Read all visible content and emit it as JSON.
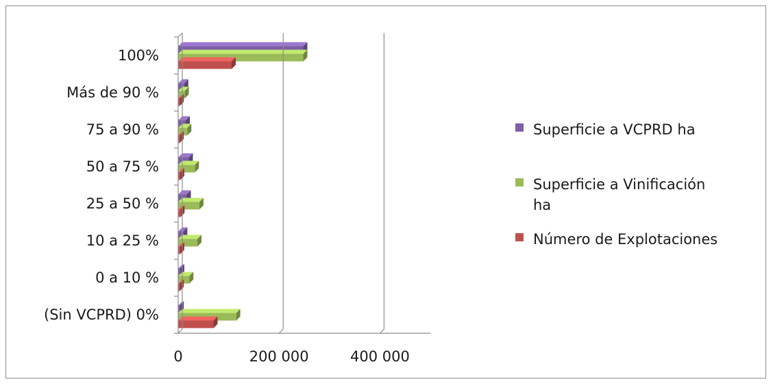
{
  "chart_data": {
    "type": "bar",
    "orientation": "horizontal",
    "categories": [
      "(Sin VCPRD) 0%",
      "0 a 10 %",
      "10 a 25 %",
      "25 a 50 %",
      "50 a 75 %",
      "75 a 90 %",
      "Más de 90 %",
      "100%"
    ],
    "series": [
      {
        "name": "Superficie a VCPRD ha",
        "color": "#7d5fa6",
        "values": [
          3000,
          4000,
          10000,
          17000,
          21000,
          15000,
          12000,
          248000
        ]
      },
      {
        "name": "Superficie a Vinificación ha",
        "color": "#9bbb59",
        "values": [
          115000,
          22000,
          38000,
          42000,
          33000,
          18000,
          13000,
          248000
        ]
      },
      {
        "name": "Número de Explotaciones",
        "color": "#c0504d",
        "values": [
          70000,
          3000,
          4000,
          4500,
          4000,
          3000,
          3000,
          106000
        ]
      }
    ],
    "xticks": [
      "0",
      "200 000",
      "400 000"
    ],
    "xtick_values": [
      0,
      200000,
      400000
    ],
    "xlim": [
      0,
      500000
    ],
    "grid": true,
    "legend_position": "right"
  }
}
